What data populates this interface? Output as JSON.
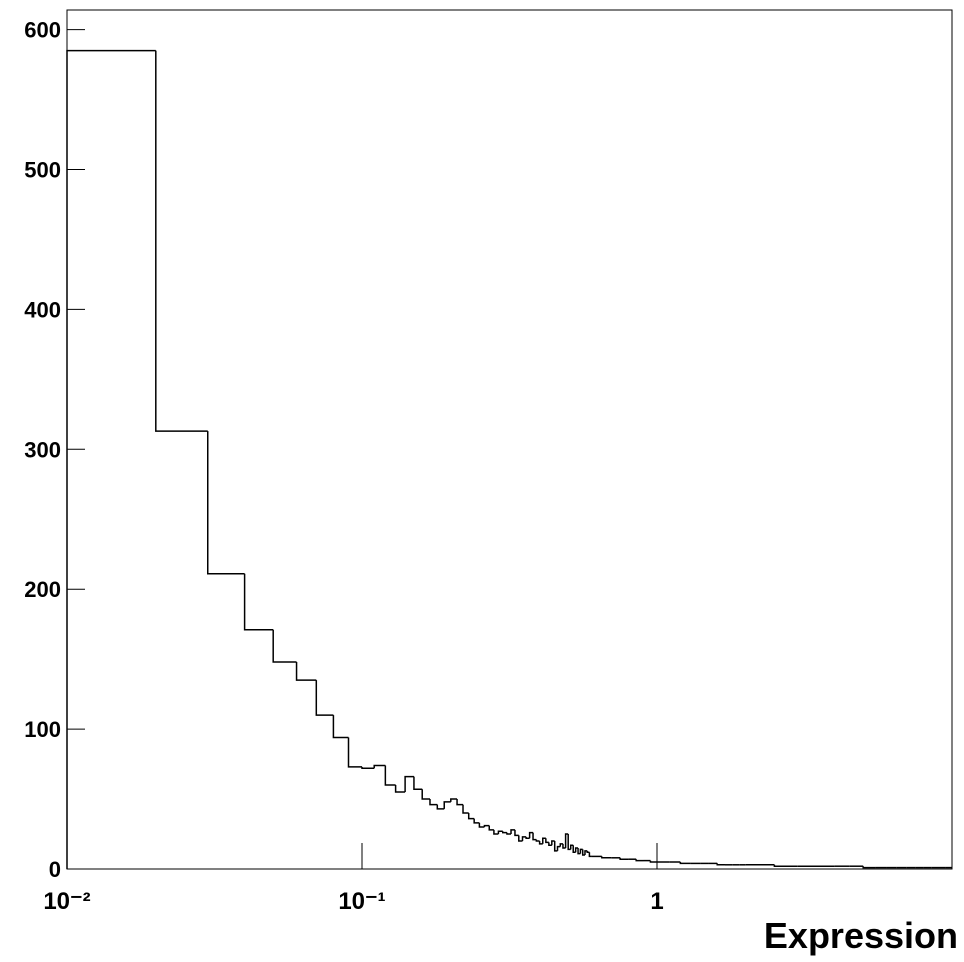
{
  "chart_data": {
    "type": "histogram",
    "x_label": "Expression",
    "log_x": true,
    "color": "#000000",
    "xlim": [
      0.01,
      10
    ],
    "xticks": [
      {
        "value": 0.01,
        "label": "10⁻²"
      },
      {
        "value": 0.1,
        "label": "10⁻¹"
      },
      1
    ],
    "ylim": [
      0,
      614
    ],
    "yticks": [
      0,
      100,
      200,
      300,
      400,
      500,
      600
    ],
    "bins": [
      0.01,
      0.02,
      0.03,
      0.04,
      0.05,
      0.06,
      0.07,
      0.08,
      0.09,
      0.1,
      0.11,
      0.12,
      0.13,
      0.14,
      0.15,
      0.16,
      0.17,
      0.18,
      0.19,
      0.2,
      0.21,
      0.22,
      0.23,
      0.24,
      0.25,
      0.26,
      0.27,
      0.28,
      0.29,
      0.3,
      0.31,
      0.32,
      0.33,
      0.34,
      0.35,
      0.36,
      0.37,
      0.38,
      0.39,
      0.4,
      0.41,
      0.42,
      0.43,
      0.44,
      0.45,
      0.46,
      0.47,
      0.48,
      0.49,
      0.5,
      0.51,
      0.52,
      0.53,
      0.54,
      0.55,
      0.56,
      0.57,
      0.58,
      0.59,
      0.6,
      0.65,
      0.7,
      0.75,
      0.8,
      0.85,
      0.9,
      0.95,
      1.0,
      1.1,
      1.2,
      1.3,
      1.4,
      1.5,
      1.6,
      1.7,
      1.8,
      1.9,
      2.0,
      2.5,
      3.0,
      3.5,
      4.0,
      4.5,
      5.0,
      5.5,
      6.0,
      6.5,
      7.0,
      7.5,
      8.0,
      8.5,
      9.0,
      9.5,
      10
    ],
    "values": [
      585,
      313,
      211,
      171,
      148,
      135,
      110,
      94,
      73,
      72,
      74,
      60,
      55,
      66,
      57,
      50,
      46,
      43,
      48,
      50,
      46,
      40,
      36,
      33,
      30,
      31,
      28,
      25,
      27,
      26,
      25,
      28,
      24,
      20,
      23,
      22,
      26,
      21,
      20,
      18,
      22,
      19,
      17,
      20,
      13,
      16,
      18,
      15,
      25,
      14,
      17,
      12,
      15,
      11,
      14,
      10,
      13,
      12,
      9,
      9,
      8,
      8,
      7,
      7,
      6,
      6,
      5,
      5,
      5,
      4,
      4,
      4,
      4,
      3,
      3,
      3,
      3,
      3,
      2,
      2,
      2,
      2,
      2,
      1,
      1,
      1,
      1,
      1,
      1,
      1,
      1,
      1,
      1
    ]
  }
}
